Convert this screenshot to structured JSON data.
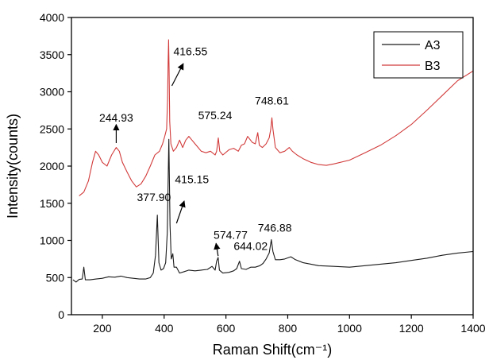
{
  "chart_data": {
    "type": "line",
    "xlabel": "Raman Shift(cm⁻¹)",
    "ylabel": "Intensity(counts)",
    "xlim": [
      100,
      1400
    ],
    "ylim": [
      0,
      4000
    ],
    "xticks": [
      200,
      400,
      600,
      800,
      1000,
      1200,
      1400
    ],
    "yticks": [
      0,
      500,
      1000,
      1500,
      2000,
      2500,
      3000,
      3500,
      4000
    ],
    "grid": false,
    "legend_position": "top-right",
    "series": [
      {
        "name": "A3",
        "color": "#1a1a1a",
        "points": [
          [
            105,
            470
          ],
          [
            115,
            440
          ],
          [
            125,
            475
          ],
          [
            135,
            480
          ],
          [
            140,
            640
          ],
          [
            145,
            470
          ],
          [
            160,
            470
          ],
          [
            180,
            480
          ],
          [
            200,
            490
          ],
          [
            220,
            510
          ],
          [
            240,
            505
          ],
          [
            260,
            520
          ],
          [
            280,
            500
          ],
          [
            300,
            490
          ],
          [
            320,
            480
          ],
          [
            340,
            480
          ],
          [
            355,
            500
          ],
          [
            365,
            560
          ],
          [
            372,
            800
          ],
          [
            377.9,
            1340
          ],
          [
            383,
            700
          ],
          [
            390,
            600
          ],
          [
            398,
            620
          ],
          [
            405,
            700
          ],
          [
            410,
            1100
          ],
          [
            415.15,
            2360
          ],
          [
            419,
            1200
          ],
          [
            423,
            750
          ],
          [
            428,
            820
          ],
          [
            432,
            640
          ],
          [
            440,
            640
          ],
          [
            450,
            560
          ],
          [
            465,
            580
          ],
          [
            480,
            600
          ],
          [
            500,
            590
          ],
          [
            520,
            600
          ],
          [
            540,
            610
          ],
          [
            555,
            650
          ],
          [
            565,
            600
          ],
          [
            570,
            720
          ],
          [
            574.77,
            770
          ],
          [
            579,
            600
          ],
          [
            590,
            560
          ],
          [
            610,
            570
          ],
          [
            625,
            590
          ],
          [
            635,
            620
          ],
          [
            644.02,
            720
          ],
          [
            650,
            620
          ],
          [
            665,
            610
          ],
          [
            680,
            640
          ],
          [
            695,
            640
          ],
          [
            710,
            660
          ],
          [
            720,
            690
          ],
          [
            730,
            750
          ],
          [
            740,
            830
          ],
          [
            746.88,
            1010
          ],
          [
            752,
            850
          ],
          [
            760,
            740
          ],
          [
            775,
            740
          ],
          [
            790,
            750
          ],
          [
            810,
            780
          ],
          [
            825,
            740
          ],
          [
            850,
            700
          ],
          [
            875,
            680
          ],
          [
            900,
            660
          ],
          [
            950,
            650
          ],
          [
            1000,
            640
          ],
          [
            1050,
            660
          ],
          [
            1100,
            680
          ],
          [
            1150,
            700
          ],
          [
            1200,
            730
          ],
          [
            1250,
            760
          ],
          [
            1300,
            800
          ],
          [
            1350,
            830
          ],
          [
            1400,
            850
          ]
        ]
      },
      {
        "name": "B3",
        "color": "#d23a3a",
        "points": [
          [
            125,
            1600
          ],
          [
            140,
            1650
          ],
          [
            155,
            1800
          ],
          [
            168,
            2050
          ],
          [
            178,
            2200
          ],
          [
            188,
            2150
          ],
          [
            200,
            2050
          ],
          [
            215,
            2000
          ],
          [
            230,
            2150
          ],
          [
            244.93,
            2250
          ],
          [
            255,
            2200
          ],
          [
            265,
            2050
          ],
          [
            280,
            1920
          ],
          [
            295,
            1800
          ],
          [
            310,
            1720
          ],
          [
            325,
            1760
          ],
          [
            340,
            1860
          ],
          [
            355,
            2000
          ],
          [
            370,
            2150
          ],
          [
            385,
            2200
          ],
          [
            395,
            2300
          ],
          [
            402,
            2400
          ],
          [
            408,
            2500
          ],
          [
            411,
            2900
          ],
          [
            413,
            3400
          ],
          [
            414.5,
            3700
          ],
          [
            416,
            3300
          ],
          [
            418,
            2600
          ],
          [
            422,
            2300
          ],
          [
            430,
            2200
          ],
          [
            440,
            2250
          ],
          [
            450,
            2350
          ],
          [
            460,
            2250
          ],
          [
            470,
            2350
          ],
          [
            480,
            2400
          ],
          [
            490,
            2350
          ],
          [
            500,
            2300
          ],
          [
            510,
            2250
          ],
          [
            520,
            2200
          ],
          [
            535,
            2180
          ],
          [
            550,
            2200
          ],
          [
            565,
            2150
          ],
          [
            570,
            2200
          ],
          [
            575.24,
            2380
          ],
          [
            580,
            2200
          ],
          [
            590,
            2150
          ],
          [
            610,
            2220
          ],
          [
            625,
            2240
          ],
          [
            640,
            2200
          ],
          [
            650,
            2280
          ],
          [
            660,
            2300
          ],
          [
            670,
            2400
          ],
          [
            685,
            2320
          ],
          [
            695,
            2300
          ],
          [
            703,
            2450
          ],
          [
            708,
            2280
          ],
          [
            718,
            2250
          ],
          [
            730,
            2300
          ],
          [
            740,
            2380
          ],
          [
            745,
            2500
          ],
          [
            748.61,
            2650
          ],
          [
            752,
            2500
          ],
          [
            760,
            2250
          ],
          [
            775,
            2180
          ],
          [
            790,
            2200
          ],
          [
            805,
            2250
          ],
          [
            815,
            2200
          ],
          [
            830,
            2150
          ],
          [
            850,
            2100
          ],
          [
            875,
            2050
          ],
          [
            900,
            2020
          ],
          [
            925,
            2010
          ],
          [
            950,
            2030
          ],
          [
            1000,
            2080
          ],
          [
            1050,
            2180
          ],
          [
            1100,
            2280
          ],
          [
            1150,
            2410
          ],
          [
            1200,
            2560
          ],
          [
            1250,
            2750
          ],
          [
            1300,
            2950
          ],
          [
            1350,
            3150
          ],
          [
            1400,
            3280
          ]
        ]
      }
    ],
    "annotations": [
      {
        "text": "244.93",
        "x": 244.93,
        "y": 2600,
        "arrow": {
          "from": [
            244.93,
            2310
          ],
          "to": [
            244.93,
            2560
          ]
        }
      },
      {
        "text": "416.55",
        "x": 430,
        "y": 3490,
        "anchor": "start",
        "arrow": {
          "from": [
            425,
            3080
          ],
          "to": [
            462,
            3380
          ]
        }
      },
      {
        "text": "575.24",
        "x": 510,
        "y": 2630,
        "anchor": "start"
      },
      {
        "text": "748.61",
        "x": 748.61,
        "y": 2830
      },
      {
        "text": "377.90",
        "x": 367,
        "y": 1530
      },
      {
        "text": "415.15",
        "x": 435,
        "y": 1770,
        "anchor": "start",
        "arrow": {
          "from": [
            440,
            1230
          ],
          "to": [
            465,
            1530
          ]
        }
      },
      {
        "text": "574.77",
        "x": 560,
        "y": 1020,
        "anchor": "start",
        "arrow": {
          "from": [
            574.77,
            790
          ],
          "to": [
            568,
            960
          ]
        }
      },
      {
        "text": "644.02",
        "x": 625,
        "y": 870,
        "anchor": "start"
      },
      {
        "text": "746.88",
        "x": 758,
        "y": 1120
      }
    ]
  }
}
